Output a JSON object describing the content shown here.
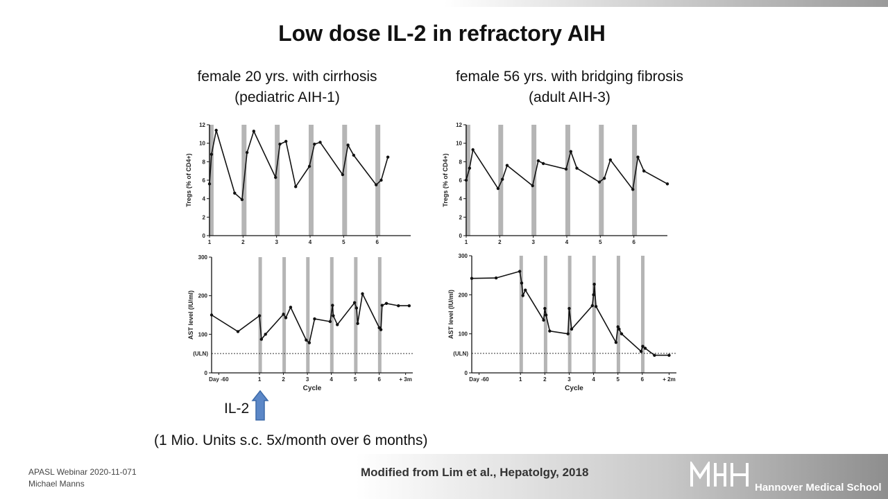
{
  "slide": {
    "title": "Low dose IL-2 in refractory AIH",
    "left_subtitle_1": "female 20 yrs. with cirrhosis",
    "left_subtitle_2": "(pediatric AIH-1)",
    "right_subtitle_1": "female 56 yrs. with bridging fibrosis",
    "right_subtitle_2": "(adult AIH-3)",
    "arrow_label": "IL-2",
    "dose_note": "(1 Mio. Units s.c. 5x/month over 6 months)",
    "footer_line_1": "APASL Webinar 2020-11-071",
    "footer_line_2": "Michael Manns",
    "citation": "Modified from Lim et al., Hepatolgy, 2018",
    "logo_letters": "MHH",
    "institution": "Hannover Medical School",
    "arrow_color": "#5b87c7"
  },
  "chart_data": [
    {
      "type": "line",
      "panel": "left-tregs",
      "ylabel": "Tregs (% of CD4+)",
      "ylim": [
        0,
        12
      ],
      "yticks": [
        0,
        2,
        4,
        6,
        8,
        10,
        12
      ],
      "xlim": [
        1,
        7
      ],
      "xticks": [
        {
          "x": 1,
          "label": "1"
        },
        {
          "x": 2,
          "label": "2"
        },
        {
          "x": 3,
          "label": "3"
        },
        {
          "x": 4,
          "label": "4"
        },
        {
          "x": 5,
          "label": "5"
        },
        {
          "x": 6,
          "label": "6"
        }
      ],
      "cycle_bars": [
        1.05,
        2.03,
        3.02,
        4.03,
        5.03,
        6.02
      ],
      "points": [
        [
          1,
          5.6
        ],
        [
          1.06,
          8.8
        ],
        [
          1.2,
          11.4
        ],
        [
          1.75,
          4.6
        ],
        [
          1.97,
          3.9
        ],
        [
          2.12,
          9.0
        ],
        [
          2.32,
          11.3
        ],
        [
          2.97,
          6.3
        ],
        [
          3.1,
          9.9
        ],
        [
          3.28,
          10.2
        ],
        [
          3.57,
          5.3
        ],
        [
          3.98,
          7.5
        ],
        [
          4.13,
          9.9
        ],
        [
          4.3,
          10.1
        ],
        [
          4.97,
          6.6
        ],
        [
          5.13,
          9.8
        ],
        [
          5.3,
          8.7
        ],
        [
          5.97,
          5.5
        ],
        [
          6.12,
          6.0
        ],
        [
          6.32,
          8.5
        ]
      ]
    },
    {
      "type": "line",
      "panel": "right-tregs",
      "ylabel": "Tregs (% of CD4+)",
      "ylim": [
        0,
        12
      ],
      "yticks": [
        0,
        2,
        4,
        6,
        8,
        10,
        12
      ],
      "xlim": [
        1,
        7
      ],
      "xticks": [
        {
          "x": 1,
          "label": "1"
        },
        {
          "x": 2,
          "label": "2"
        },
        {
          "x": 3,
          "label": "3"
        },
        {
          "x": 4,
          "label": "4"
        },
        {
          "x": 5,
          "label": "5"
        },
        {
          "x": 6,
          "label": "6"
        }
      ],
      "cycle_bars": [
        1.05,
        2.03,
        3.02,
        4.03,
        5.03,
        6.02
      ],
      "points": [
        [
          1,
          6.0
        ],
        [
          1.1,
          7.3
        ],
        [
          1.2,
          9.3
        ],
        [
          1.95,
          5.1
        ],
        [
          2.08,
          6.1
        ],
        [
          2.22,
          7.6
        ],
        [
          2.98,
          5.4
        ],
        [
          3.15,
          8.1
        ],
        [
          3.3,
          7.8
        ],
        [
          3.98,
          7.2
        ],
        [
          4.12,
          9.1
        ],
        [
          4.3,
          7.3
        ],
        [
          4.97,
          5.8
        ],
        [
          5.12,
          6.2
        ],
        [
          5.3,
          8.2
        ],
        [
          5.97,
          5.0
        ],
        [
          6.12,
          8.5
        ],
        [
          6.3,
          7.0
        ],
        [
          7,
          5.6
        ]
      ]
    },
    {
      "type": "line",
      "panel": "left-ast",
      "ylabel": "AST level (IU/ml)",
      "xlabel": "Cycle",
      "ylim": [
        0,
        300
      ],
      "yticks": [
        {
          "y": 0,
          "label": "0"
        },
        {
          "y": 100,
          "label": "100"
        },
        {
          "y": 200,
          "label": "200"
        },
        {
          "y": 300,
          "label": "300"
        }
      ],
      "reference_line": {
        "y": 50,
        "label": "(ULN)"
      },
      "xlim": [
        -1,
        7.4
      ],
      "xticks": [
        {
          "x": -0.7,
          "label": "Day -60"
        },
        {
          "x": 1,
          "label": "1"
        },
        {
          "x": 2,
          "label": "2"
        },
        {
          "x": 3,
          "label": "3"
        },
        {
          "x": 4,
          "label": "4"
        },
        {
          "x": 5,
          "label": "5"
        },
        {
          "x": 6,
          "label": "6"
        },
        {
          "x": 7.1,
          "label": "+ 3m"
        }
      ],
      "cycle_bars": [
        1.03,
        2.03,
        3.02,
        4.02,
        5.02,
        6.02
      ],
      "points": [
        [
          -1,
          150
        ],
        [
          0.1,
          107
        ],
        [
          1,
          148
        ],
        [
          1.08,
          87
        ],
        [
          1.25,
          100
        ],
        [
          2,
          152
        ],
        [
          2.1,
          143
        ],
        [
          2.3,
          170
        ],
        [
          2.95,
          85
        ],
        [
          3.08,
          78
        ],
        [
          3.3,
          140
        ],
        [
          3.95,
          133
        ],
        [
          4.05,
          175
        ],
        [
          4.08,
          148
        ],
        [
          4.25,
          125
        ],
        [
          4.97,
          182
        ],
        [
          5.05,
          168
        ],
        [
          5.1,
          128
        ],
        [
          5.3,
          205
        ],
        [
          6.0,
          117
        ],
        [
          6.07,
          112
        ],
        [
          6.12,
          175
        ],
        [
          6.3,
          180
        ],
        [
          6.8,
          174
        ],
        [
          7.25,
          174
        ]
      ]
    },
    {
      "type": "line",
      "panel": "right-ast",
      "ylabel": "AST level (IU/ml)",
      "xlabel": "Cycle",
      "ylim": [
        0,
        300
      ],
      "yticks": [
        {
          "y": 0,
          "label": "0"
        },
        {
          "y": 100,
          "label": "100"
        },
        {
          "y": 200,
          "label": "200"
        },
        {
          "y": 300,
          "label": "300"
        }
      ],
      "reference_line": {
        "y": 50,
        "label": "(ULN)"
      },
      "xlim": [
        -1,
        7.4
      ],
      "xticks": [
        {
          "x": -0.7,
          "label": "Day -60"
        },
        {
          "x": 1,
          "label": "1"
        },
        {
          "x": 2,
          "label": "2"
        },
        {
          "x": 3,
          "label": "3"
        },
        {
          "x": 4,
          "label": "4"
        },
        {
          "x": 5,
          "label": "5"
        },
        {
          "x": 6,
          "label": "6"
        },
        {
          "x": 7.1,
          "label": "+ 2m"
        }
      ],
      "cycle_bars": [
        1.03,
        2.03,
        3.02,
        4.02,
        5.02,
        6.02
      ],
      "points": [
        [
          -1,
          242
        ],
        [
          0.0,
          243
        ],
        [
          0.97,
          260
        ],
        [
          1.05,
          230
        ],
        [
          1.1,
          198
        ],
        [
          1.2,
          212
        ],
        [
          1.95,
          135
        ],
        [
          2.0,
          165
        ],
        [
          2.05,
          148
        ],
        [
          2.2,
          107
        ],
        [
          2.95,
          100
        ],
        [
          3.0,
          165
        ],
        [
          3.1,
          112
        ],
        [
          3.95,
          172
        ],
        [
          4.0,
          200
        ],
        [
          4.03,
          227
        ],
        [
          4.1,
          170
        ],
        [
          4.92,
          78
        ],
        [
          5.0,
          118
        ],
        [
          5.05,
          112
        ],
        [
          5.15,
          100
        ],
        [
          5.95,
          55
        ],
        [
          6.02,
          68
        ],
        [
          6.12,
          63
        ],
        [
          6.5,
          45
        ],
        [
          7.1,
          45
        ]
      ]
    }
  ]
}
